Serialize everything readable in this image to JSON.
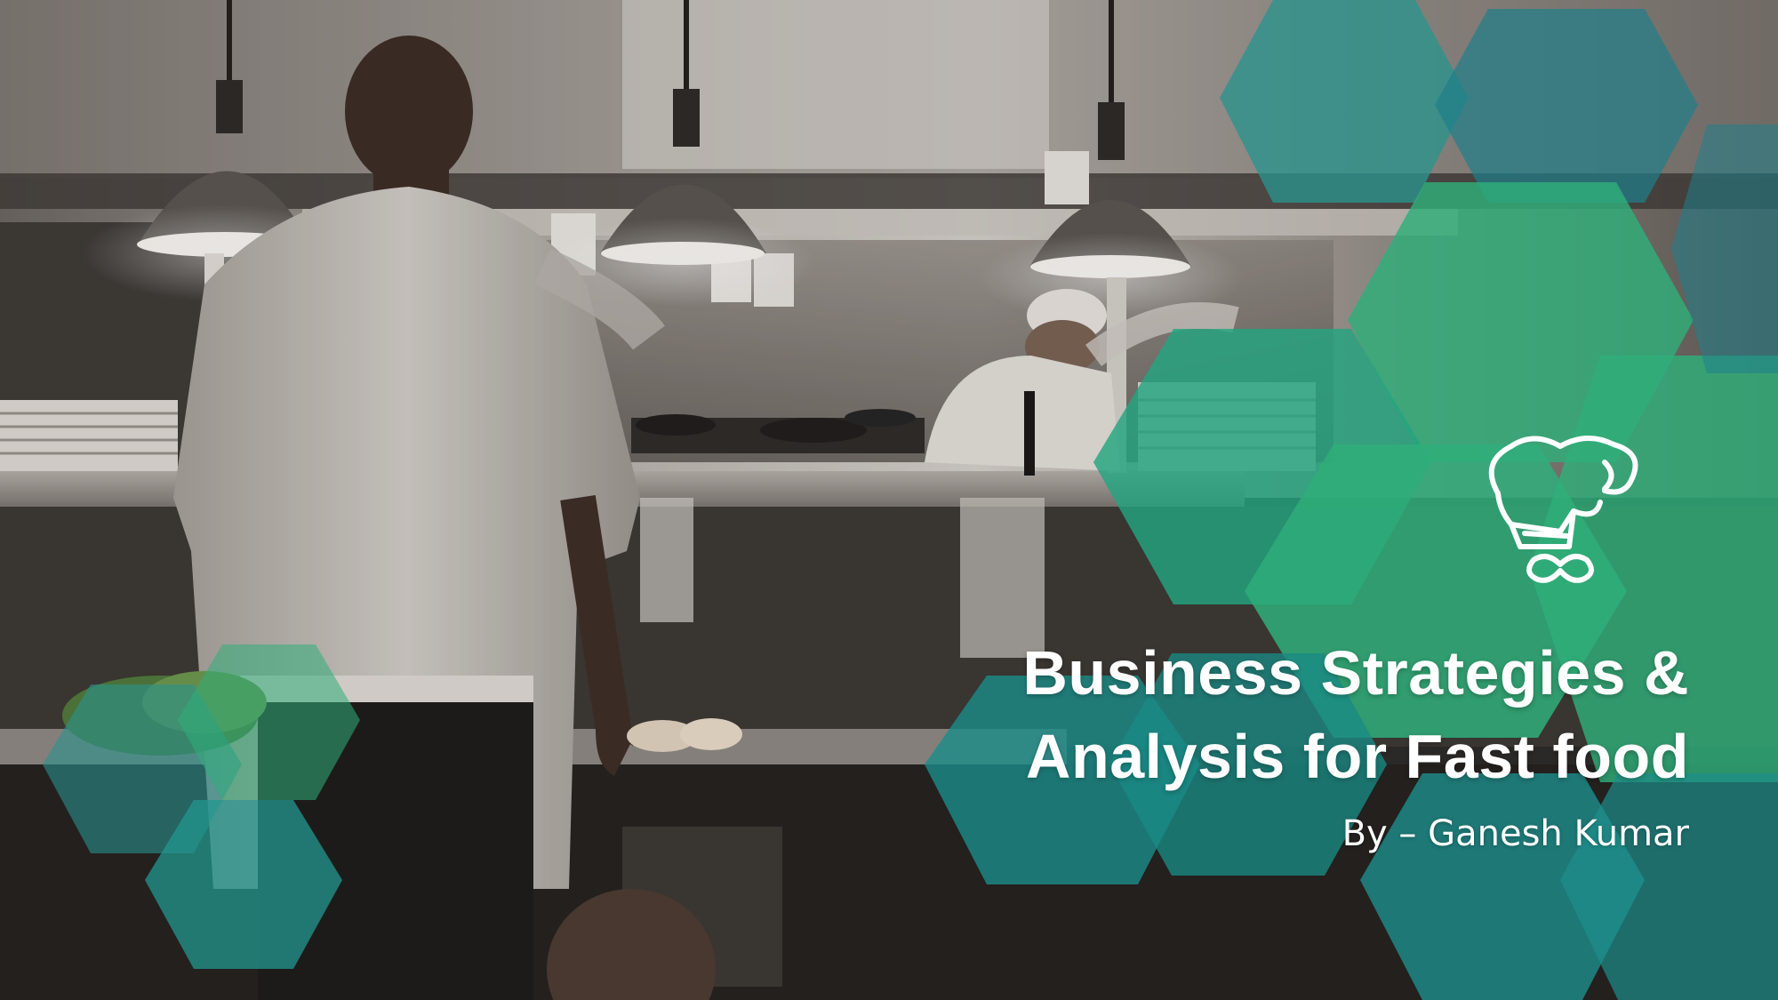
{
  "slide": {
    "title_line_1": "Business Strategies &",
    "title_line_2": "Analysis for Fast food",
    "byline": "By – Ganesh Kumar"
  },
  "background": {
    "description_icon": "chef-kitchen-photo"
  },
  "icons": {
    "chef": "chef-hat-icon"
  },
  "colors": {
    "teal": "#1b8f8a",
    "green": "#2fae7a",
    "text": "#ffffff"
  }
}
